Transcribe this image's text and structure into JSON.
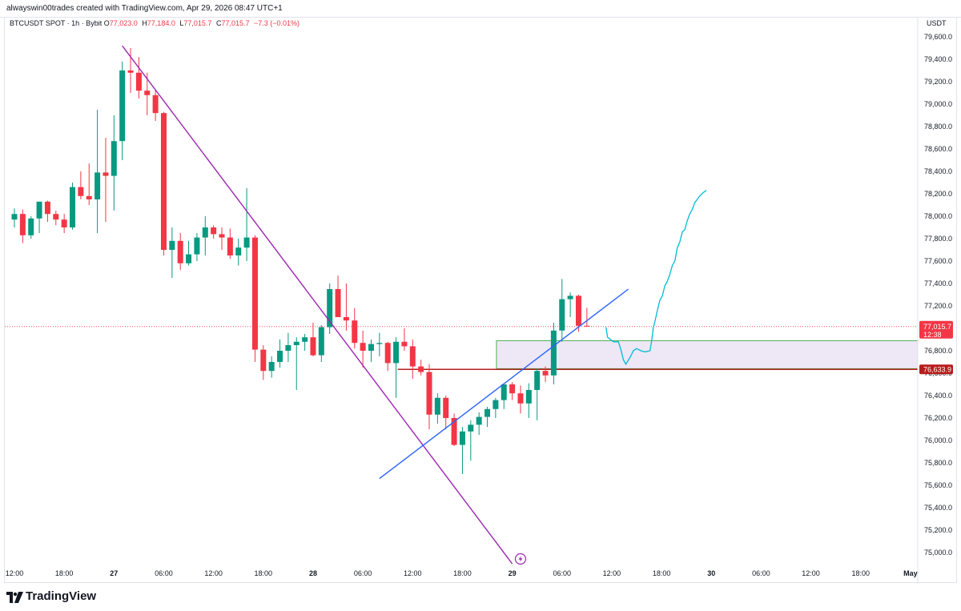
{
  "header": {
    "credit": "alwayswin00trades created with TradingView.com, Apr 29, 2026 08:47 UTC+1"
  },
  "legend": {
    "symbol": "BTCUSDT SPOT · 1h · Bybit",
    "o_label": "O",
    "o_value": "77,023.0",
    "h_label": "H",
    "h_value": "77,184.0",
    "l_label": "L",
    "l_value": "77,015.7",
    "c_label": "C",
    "c_value": "77,015.7",
    "change": "−7.3 (−0.01%)"
  },
  "colors": {
    "up": "#089981",
    "down": "#f23645",
    "purple_line": "#9c27b0",
    "blue_line": "#2962ff",
    "projection": "#00bcd4",
    "zone_fill": "#ede7f6",
    "zone_border": "#4caf50",
    "level_line": "#b71c1c"
  },
  "chart_data": {
    "type": "candlestick",
    "symbol": "BTCUSDT",
    "interval": "1h",
    "currency": "USDT",
    "ylim": [
      74900,
      79700
    ],
    "y_ticks": [
      "75,000.0",
      "75,200.0",
      "75,400.0",
      "75,600.0",
      "75,800.0",
      "76,000.0",
      "76,200.0",
      "76,400.0",
      "76,600.0",
      "76,800.0",
      "77,000.0",
      "77,200.0",
      "77,400.0",
      "77,600.0",
      "77,800.0",
      "78,000.0",
      "78,200.0",
      "78,400.0",
      "78,600.0",
      "78,800.0",
      "79,000.0",
      "79,200.0",
      "79,400.0",
      "79,600.0"
    ],
    "x_ticks": [
      {
        "label": "12:00",
        "h": 0
      },
      {
        "label": "18:00",
        "h": 6
      },
      {
        "label": "27",
        "h": 12
      },
      {
        "label": "06:00",
        "h": 18
      },
      {
        "label": "12:00",
        "h": 24
      },
      {
        "label": "18:00",
        "h": 30
      },
      {
        "label": "28",
        "h": 36
      },
      {
        "label": "06:00",
        "h": 42
      },
      {
        "label": "12:00",
        "h": 48
      },
      {
        "label": "18:00",
        "h": 54
      },
      {
        "label": "29",
        "h": 60
      },
      {
        "label": "06:00",
        "h": 66
      },
      {
        "label": "12:00",
        "h": 72
      },
      {
        "label": "18:00",
        "h": 78
      },
      {
        "label": "30",
        "h": 84
      },
      {
        "label": "06:00",
        "h": 90
      },
      {
        "label": "12:00",
        "h": 96
      },
      {
        "label": "18:00",
        "h": 102
      },
      {
        "label": "May",
        "h": 108
      }
    ],
    "candles": [
      {
        "o": 77970,
        "h": 78070,
        "l": 77900,
        "c": 78020
      },
      {
        "o": 78020,
        "h": 78060,
        "l": 77760,
        "c": 77830
      },
      {
        "o": 77830,
        "h": 78000,
        "l": 77800,
        "c": 77980
      },
      {
        "o": 77980,
        "h": 78100,
        "l": 77850,
        "c": 78130
      },
      {
        "o": 78130,
        "h": 78140,
        "l": 77950,
        "c": 78020
      },
      {
        "o": 78020,
        "h": 78050,
        "l": 77920,
        "c": 77970
      },
      {
        "o": 77970,
        "h": 78020,
        "l": 77850,
        "c": 77900
      },
      {
        "o": 77900,
        "h": 78300,
        "l": 77880,
        "c": 78260
      },
      {
        "o": 78260,
        "h": 78400,
        "l": 78150,
        "c": 78180
      },
      {
        "o": 78180,
        "h": 78470,
        "l": 78100,
        "c": 78150
      },
      {
        "o": 78150,
        "h": 78950,
        "l": 77850,
        "c": 78390
      },
      {
        "o": 78390,
        "h": 78700,
        "l": 77950,
        "c": 78360
      },
      {
        "o": 78360,
        "h": 78900,
        "l": 78050,
        "c": 78670
      },
      {
        "o": 78670,
        "h": 79380,
        "l": 78500,
        "c": 79300
      },
      {
        "o": 79300,
        "h": 79500,
        "l": 79100,
        "c": 79280
      },
      {
        "o": 79280,
        "h": 79420,
        "l": 79050,
        "c": 79120
      },
      {
        "o": 79120,
        "h": 79280,
        "l": 78900,
        "c": 79080
      },
      {
        "o": 79080,
        "h": 79130,
        "l": 78850,
        "c": 78920
      },
      {
        "o": 78920,
        "h": 78930,
        "l": 77650,
        "c": 77700
      },
      {
        "o": 77700,
        "h": 77900,
        "l": 77450,
        "c": 77780
      },
      {
        "o": 77780,
        "h": 77850,
        "l": 77520,
        "c": 77580
      },
      {
        "o": 77580,
        "h": 77780,
        "l": 77560,
        "c": 77660
      },
      {
        "o": 77660,
        "h": 77850,
        "l": 77600,
        "c": 77810
      },
      {
        "o": 77810,
        "h": 78000,
        "l": 77650,
        "c": 77900
      },
      {
        "o": 77900,
        "h": 77920,
        "l": 77800,
        "c": 77840
      },
      {
        "o": 77840,
        "h": 77900,
        "l": 77700,
        "c": 77810
      },
      {
        "o": 77810,
        "h": 77890,
        "l": 77620,
        "c": 77650
      },
      {
        "o": 77650,
        "h": 77800,
        "l": 77560,
        "c": 77720
      },
      {
        "o": 77720,
        "h": 78250,
        "l": 77600,
        "c": 77810
      },
      {
        "o": 77810,
        "h": 77830,
        "l": 76700,
        "c": 76810
      },
      {
        "o": 76810,
        "h": 76850,
        "l": 76540,
        "c": 76620
      },
      {
        "o": 76620,
        "h": 76750,
        "l": 76560,
        "c": 76700
      },
      {
        "o": 76700,
        "h": 76900,
        "l": 76650,
        "c": 76800
      },
      {
        "o": 76800,
        "h": 76960,
        "l": 76700,
        "c": 76850
      },
      {
        "o": 76850,
        "h": 76920,
        "l": 76450,
        "c": 76880
      },
      {
        "o": 76880,
        "h": 76950,
        "l": 76800,
        "c": 76920
      },
      {
        "o": 76920,
        "h": 77050,
        "l": 76750,
        "c": 76760
      },
      {
        "o": 76760,
        "h": 77030,
        "l": 76700,
        "c": 77010
      },
      {
        "o": 77010,
        "h": 77400,
        "l": 76950,
        "c": 77350
      },
      {
        "o": 77350,
        "h": 77470,
        "l": 77100,
        "c": 77100
      },
      {
        "o": 77100,
        "h": 77400,
        "l": 76980,
        "c": 77070
      },
      {
        "o": 77070,
        "h": 77180,
        "l": 76820,
        "c": 76870
      },
      {
        "o": 76870,
        "h": 76980,
        "l": 76650,
        "c": 76800
      },
      {
        "o": 76800,
        "h": 76900,
        "l": 76700,
        "c": 76860
      },
      {
        "o": 76860,
        "h": 76960,
        "l": 76750,
        "c": 76870
      },
      {
        "o": 76870,
        "h": 76880,
        "l": 76620,
        "c": 76690
      },
      {
        "o": 76690,
        "h": 76920,
        "l": 76380,
        "c": 76880
      },
      {
        "o": 76880,
        "h": 77000,
        "l": 76800,
        "c": 76840
      },
      {
        "o": 76840,
        "h": 76900,
        "l": 76550,
        "c": 76660
      },
      {
        "o": 76660,
        "h": 76720,
        "l": 76580,
        "c": 76610
      },
      {
        "o": 76610,
        "h": 76680,
        "l": 76100,
        "c": 76230
      },
      {
        "o": 76230,
        "h": 76420,
        "l": 76150,
        "c": 76380
      },
      {
        "o": 76380,
        "h": 76400,
        "l": 76100,
        "c": 76200
      },
      {
        "o": 76200,
        "h": 76240,
        "l": 75950,
        "c": 75960
      },
      {
        "o": 75960,
        "h": 76120,
        "l": 75700,
        "c": 76080
      },
      {
        "o": 76080,
        "h": 76180,
        "l": 75820,
        "c": 76140
      },
      {
        "o": 76140,
        "h": 76250,
        "l": 76050,
        "c": 76210
      },
      {
        "o": 76210,
        "h": 76300,
        "l": 76120,
        "c": 76280
      },
      {
        "o": 76280,
        "h": 76380,
        "l": 76200,
        "c": 76360
      },
      {
        "o": 76360,
        "h": 76500,
        "l": 76280,
        "c": 76500
      },
      {
        "o": 76500,
        "h": 76520,
        "l": 76360,
        "c": 76420
      },
      {
        "o": 76420,
        "h": 76490,
        "l": 76240,
        "c": 76330
      },
      {
        "o": 76330,
        "h": 76510,
        "l": 76200,
        "c": 76450
      },
      {
        "o": 76450,
        "h": 76640,
        "l": 76180,
        "c": 76620
      },
      {
        "o": 76620,
        "h": 76660,
        "l": 76520,
        "c": 76580
      },
      {
        "o": 76580,
        "h": 77050,
        "l": 76500,
        "c": 76980
      },
      {
        "o": 76980,
        "h": 77440,
        "l": 76880,
        "c": 77260
      },
      {
        "o": 77260,
        "h": 77320,
        "l": 77100,
        "c": 77290
      },
      {
        "o": 77290,
        "h": 77300,
        "l": 76970,
        "c": 77023
      },
      {
        "o": 77023,
        "h": 77184,
        "l": 77016,
        "c": 77015.7
      }
    ],
    "current_price": 77015.7,
    "current_price_label": "77,015.7",
    "countdown": "12:38",
    "level_price": 76633.9,
    "level_label": "76,633.9",
    "zone": {
      "from_h": 58.1,
      "to_h": 120,
      "low": 76640,
      "high": 76890
    },
    "trendlines": [
      {
        "name": "downtrend",
        "p1": {
          "h": 13,
          "y": 79520
        },
        "p2": {
          "h": 60,
          "y": 74900
        }
      },
      {
        "name": "uptrend",
        "p1": {
          "h": 44,
          "y": 75660
        },
        "p2": {
          "h": 74,
          "y": 77350
        }
      }
    ],
    "projection_path": [
      [
        71.3,
        77010
      ],
      [
        71.5,
        76920
      ],
      [
        72.2,
        76880
      ],
      [
        72.8,
        76880
      ],
      [
        73.1,
        76810
      ],
      [
        73.4,
        76720
      ],
      [
        73.7,
        76680
      ],
      [
        74.2,
        76740
      ],
      [
        74.6,
        76800
      ],
      [
        75.0,
        76820
      ],
      [
        75.5,
        76800
      ],
      [
        76.0,
        76790
      ],
      [
        76.6,
        76800
      ],
      [
        76.8,
        76880
      ],
      [
        77.0,
        77000
      ],
      [
        77.2,
        77060
      ],
      [
        77.4,
        77130
      ],
      [
        77.6,
        77190
      ],
      [
        77.8,
        77250
      ],
      [
        78.1,
        77290
      ],
      [
        78.4,
        77380
      ],
      [
        78.7,
        77420
      ],
      [
        79.0,
        77480
      ],
      [
        79.3,
        77560
      ],
      [
        79.6,
        77600
      ],
      [
        79.9,
        77720
      ],
      [
        80.2,
        77770
      ],
      [
        80.5,
        77860
      ],
      [
        80.8,
        77880
      ],
      [
        81.1,
        77960
      ],
      [
        81.4,
        78020
      ],
      [
        81.7,
        78060
      ],
      [
        82.0,
        78120
      ],
      [
        82.3,
        78150
      ],
      [
        82.6,
        78180
      ],
      [
        83.0,
        78210
      ],
      [
        83.4,
        78230
      ]
    ],
    "lightning_at": {
      "h": 61.0,
      "y": 74930
    }
  },
  "footer": {
    "brand": "TradingView"
  }
}
